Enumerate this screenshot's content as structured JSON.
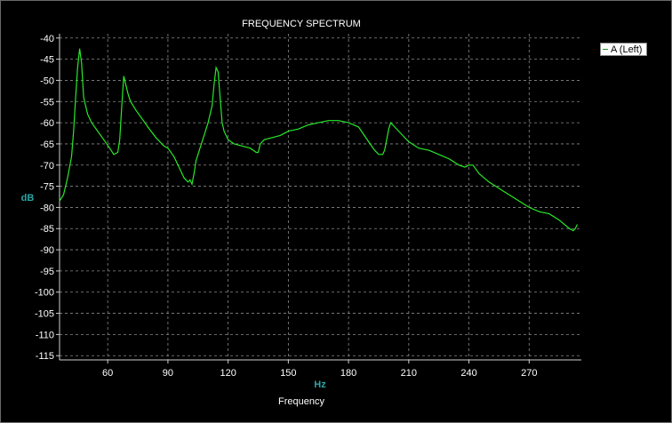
{
  "chart_data": {
    "type": "line",
    "title": "FREQUENCY SPECTRUM",
    "ylabel": "dB",
    "xunit": "Hz",
    "xlabel": "Frequency",
    "xlim": [
      36,
      296
    ],
    "ylim": [
      -116,
      -39
    ],
    "xticks": [
      60,
      90,
      120,
      150,
      180,
      210,
      240,
      270
    ],
    "yticks": [
      -40,
      -45,
      -50,
      -55,
      -60,
      -65,
      -70,
      -75,
      -80,
      -85,
      -90,
      -95,
      -100,
      -105,
      -110,
      -115
    ],
    "grid": true,
    "legend_position": "top-right",
    "series": [
      {
        "name": "A (Left)",
        "color": "#28e828",
        "x": [
          36,
          38,
          40,
          42,
          43,
          44,
          45,
          46,
          47,
          48,
          50,
          52,
          55,
          58,
          61,
          63,
          65,
          66,
          67,
          68,
          69,
          70,
          71,
          72,
          74,
          77,
          80,
          84,
          88,
          90,
          93,
          96,
          98,
          100,
          101,
          102,
          103,
          104,
          106,
          108,
          110,
          112,
          113,
          114,
          115,
          116,
          117,
          118,
          120,
          123,
          127,
          131,
          134,
          135,
          136,
          138,
          142,
          146,
          150,
          155,
          160,
          165,
          170,
          175,
          180,
          185,
          190,
          193,
          195,
          197,
          198,
          199,
          200,
          201,
          203,
          206,
          210,
          215,
          220,
          225,
          230,
          235,
          238,
          240,
          242,
          245,
          250,
          255,
          260,
          265,
          270,
          275,
          280,
          285,
          290,
          292,
          293,
          294
        ],
        "y": [
          -78.5,
          -77,
          -73,
          -68,
          -62,
          -54,
          -47,
          -42.5,
          -46,
          -54,
          -58,
          -60,
          -62,
          -64,
          -66,
          -67.5,
          -67,
          -64,
          -56,
          -49,
          -51,
          -53,
          -54.5,
          -55.5,
          -57,
          -59,
          -61,
          -63.5,
          -65.5,
          -66,
          -68,
          -71,
          -73,
          -74,
          -73.5,
          -74.5,
          -72,
          -69,
          -66,
          -63,
          -60,
          -56,
          -51,
          -47,
          -48,
          -54,
          -60,
          -62,
          -64,
          -65,
          -65.5,
          -66,
          -67,
          -67,
          -65,
          -64,
          -63.5,
          -63,
          -62,
          -61.5,
          -60.5,
          -60,
          -59.5,
          -59.5,
          -60,
          -61,
          -64.5,
          -66.5,
          -67.5,
          -67.5,
          -66.5,
          -64,
          -61.5,
          -60,
          -61,
          -62.5,
          -64.5,
          -66,
          -66.5,
          -67.5,
          -68.5,
          -70,
          -70.5,
          -70,
          -70,
          -72,
          -74,
          -75.5,
          -77,
          -78.5,
          -80,
          -81,
          -81.5,
          -83,
          -85,
          -85.5,
          -85,
          -84
        ]
      }
    ]
  }
}
